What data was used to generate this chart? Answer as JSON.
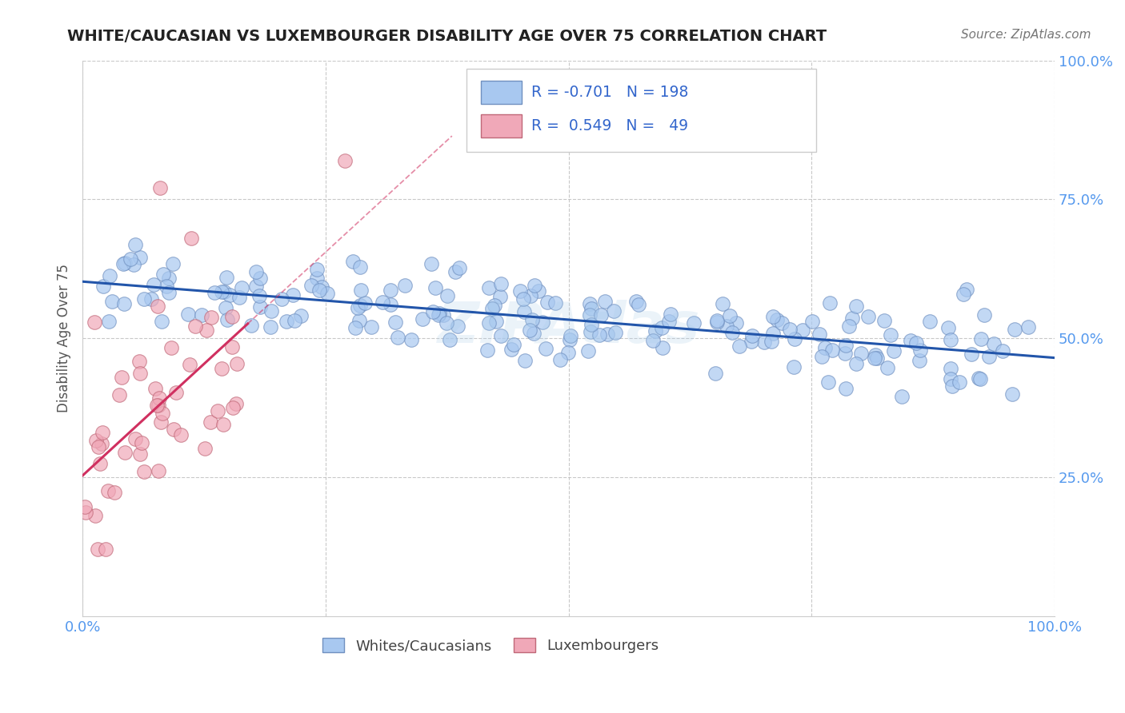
{
  "title": "WHITE/CAUCASIAN VS LUXEMBOURGER DISABILITY AGE OVER 75 CORRELATION CHART",
  "source": "Source: ZipAtlas.com",
  "ylabel": "Disability Age Over 75",
  "xlim": [
    0.0,
    1.0
  ],
  "ylim": [
    0.0,
    1.0
  ],
  "blue_color": "#A8C8F0",
  "pink_color": "#F0A8B8",
  "blue_edge": "#7090C0",
  "pink_edge": "#C06878",
  "blue_line_color": "#2255AA",
  "pink_line_color": "#D03060",
  "legend_blue_r": "-0.701",
  "legend_blue_n": "198",
  "legend_pink_r": "0.549",
  "legend_pink_n": "49",
  "legend_label1": "Whites/Caucasians",
  "legend_label2": "Luxembourgers",
  "watermark": "ZIPAtlas",
  "r_blue": -0.701,
  "n_blue": 198,
  "r_pink": 0.549,
  "n_pink": 49,
  "title_color": "#222222",
  "source_color": "#777777",
  "axis_label_color": "#555555",
  "tick_color": "#5599EE",
  "legend_r_color": "#3366CC"
}
